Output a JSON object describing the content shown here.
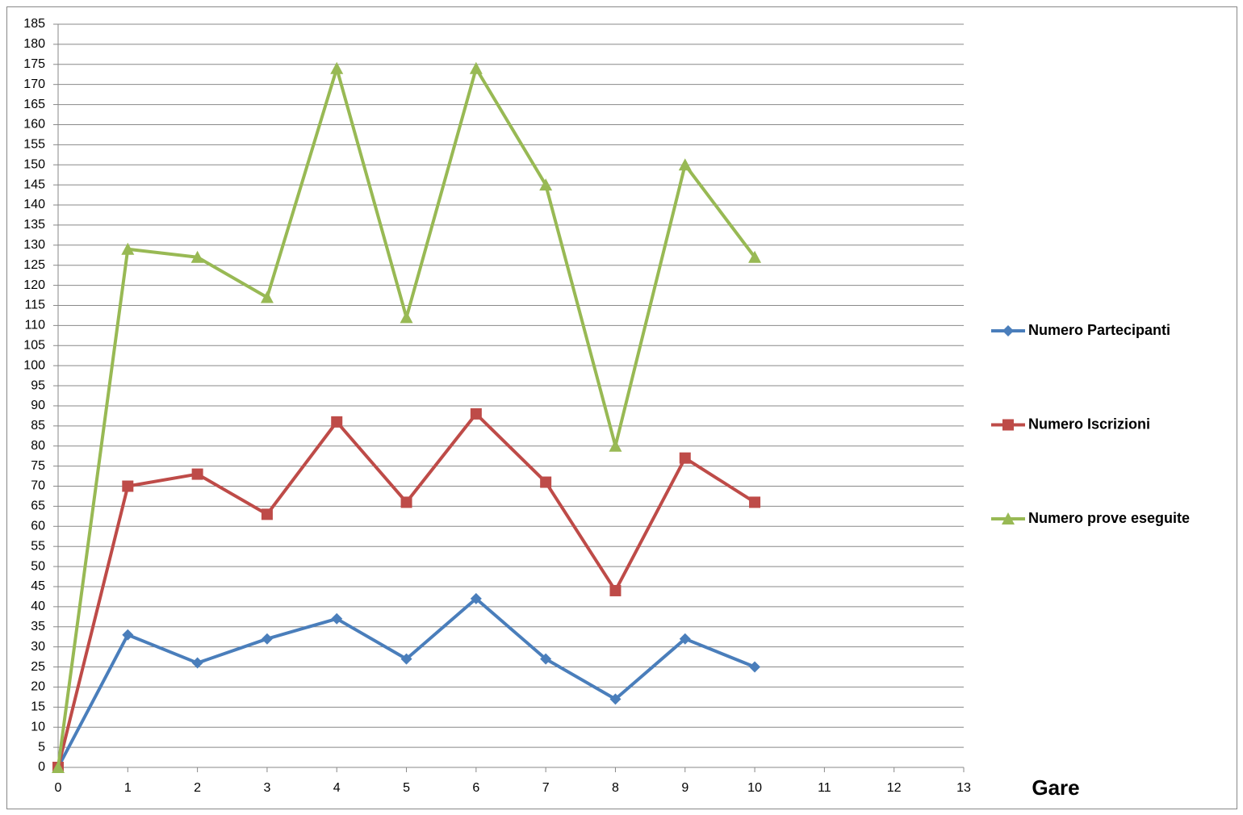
{
  "chart_data": {
    "type": "line",
    "x": [
      0,
      1,
      2,
      3,
      4,
      5,
      6,
      7,
      8,
      9,
      10
    ],
    "x_label": "Gare",
    "series": [
      {
        "name": "Numero Partecipanti",
        "color": "#4a7ebb",
        "marker": "diamond",
        "values": [
          0,
          33,
          26,
          32,
          37,
          27,
          42,
          27,
          17,
          32,
          25
        ]
      },
      {
        "name": "Numero Iscrizioni",
        "color": "#be4b48",
        "marker": "square",
        "values": [
          0,
          70,
          73,
          63,
          86,
          66,
          88,
          71,
          44,
          77,
          66
        ]
      },
      {
        "name": "Numero prove eseguite",
        "color": "#98b954",
        "marker": "triangle",
        "values": [
          0,
          129,
          127,
          117,
          174,
          112,
          174,
          145,
          80,
          150,
          127
        ]
      }
    ],
    "xlim": [
      0,
      13
    ],
    "xticks": [
      0,
      1,
      2,
      3,
      4,
      5,
      6,
      7,
      8,
      9,
      10,
      11,
      12,
      13
    ],
    "ylim": [
      0,
      185
    ],
    "yticks": [
      0,
      5,
      10,
      15,
      20,
      25,
      30,
      35,
      40,
      45,
      50,
      55,
      60,
      65,
      70,
      75,
      80,
      85,
      90,
      95,
      100,
      105,
      110,
      115,
      120,
      125,
      130,
      135,
      140,
      145,
      150,
      155,
      160,
      165,
      170,
      175,
      180,
      185
    ],
    "grid": true,
    "legend": "right"
  }
}
